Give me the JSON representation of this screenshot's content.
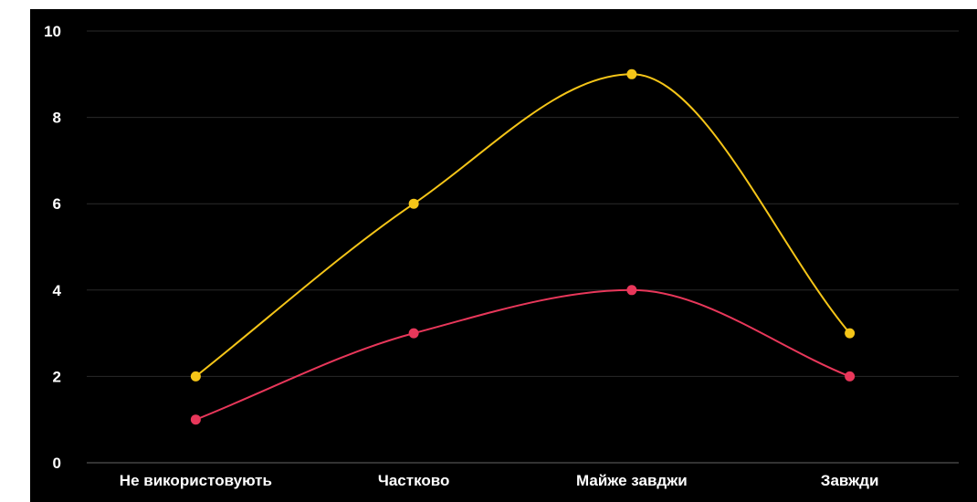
{
  "chart_data": {
    "type": "line",
    "categories": [
      "Не використовують",
      "Частково",
      "Майже завджи",
      "Завжди"
    ],
    "series": [
      {
        "values": [
          2,
          6,
          9,
          3
        ],
        "color": "#f5c518"
      },
      {
        "values": [
          1,
          3,
          4,
          2
        ],
        "color": "#e8375a"
      }
    ],
    "ylim": [
      0,
      10
    ],
    "yticks": [
      0,
      2,
      4,
      6,
      8,
      10
    ],
    "smooth": true,
    "grid": true,
    "background": "#000000",
    "grid_color": "#2a2a2a",
    "axis_color": "#666666",
    "text_color": "#ffffff"
  }
}
